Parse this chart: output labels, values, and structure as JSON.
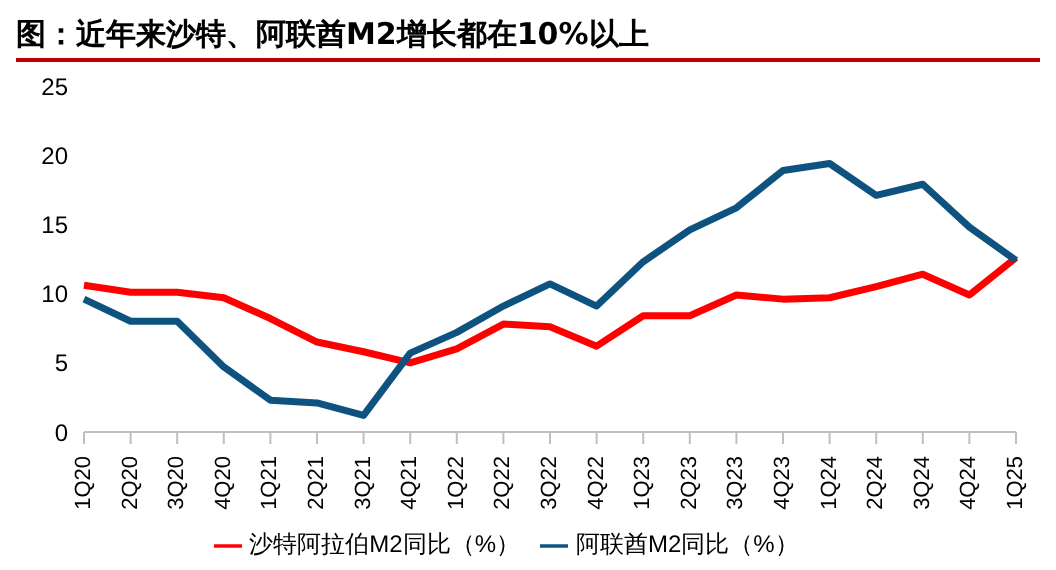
{
  "chart_data": {
    "type": "line",
    "title": "图：近年来沙特、阿联酋M2增长都在10%以上",
    "categories": [
      "1Q20",
      "2Q20",
      "3Q20",
      "4Q20",
      "1Q21",
      "2Q21",
      "3Q21",
      "4Q21",
      "1Q22",
      "2Q22",
      "3Q22",
      "4Q22",
      "1Q23",
      "2Q23",
      "3Q23",
      "4Q23",
      "1Q24",
      "2Q24",
      "3Q24",
      "4Q24",
      "1Q25"
    ],
    "series": [
      {
        "name": "沙特阿拉伯M2同比（%）",
        "color": "#ff0000",
        "values": [
          10.6,
          10.1,
          10.1,
          9.7,
          8.2,
          6.5,
          5.8,
          5.0,
          6.0,
          7.8,
          7.6,
          6.2,
          8.4,
          8.4,
          9.9,
          9.6,
          9.7,
          10.5,
          11.4,
          9.9,
          12.6
        ]
      },
      {
        "name": "阿联酋M2同比（%）",
        "color": "#0e5380",
        "values": [
          9.6,
          8.0,
          8.0,
          4.7,
          2.3,
          2.1,
          1.2,
          5.7,
          7.2,
          9.1,
          10.7,
          9.1,
          12.3,
          14.6,
          16.2,
          18.9,
          19.4,
          17.1,
          17.9,
          14.8,
          12.4
        ]
      }
    ],
    "ylim": [
      0,
      25
    ],
    "yticks": [
      0,
      5,
      10,
      15,
      20,
      25
    ],
    "grid": false,
    "legend": "bottom",
    "marker": "none",
    "line_style": "solid"
  }
}
